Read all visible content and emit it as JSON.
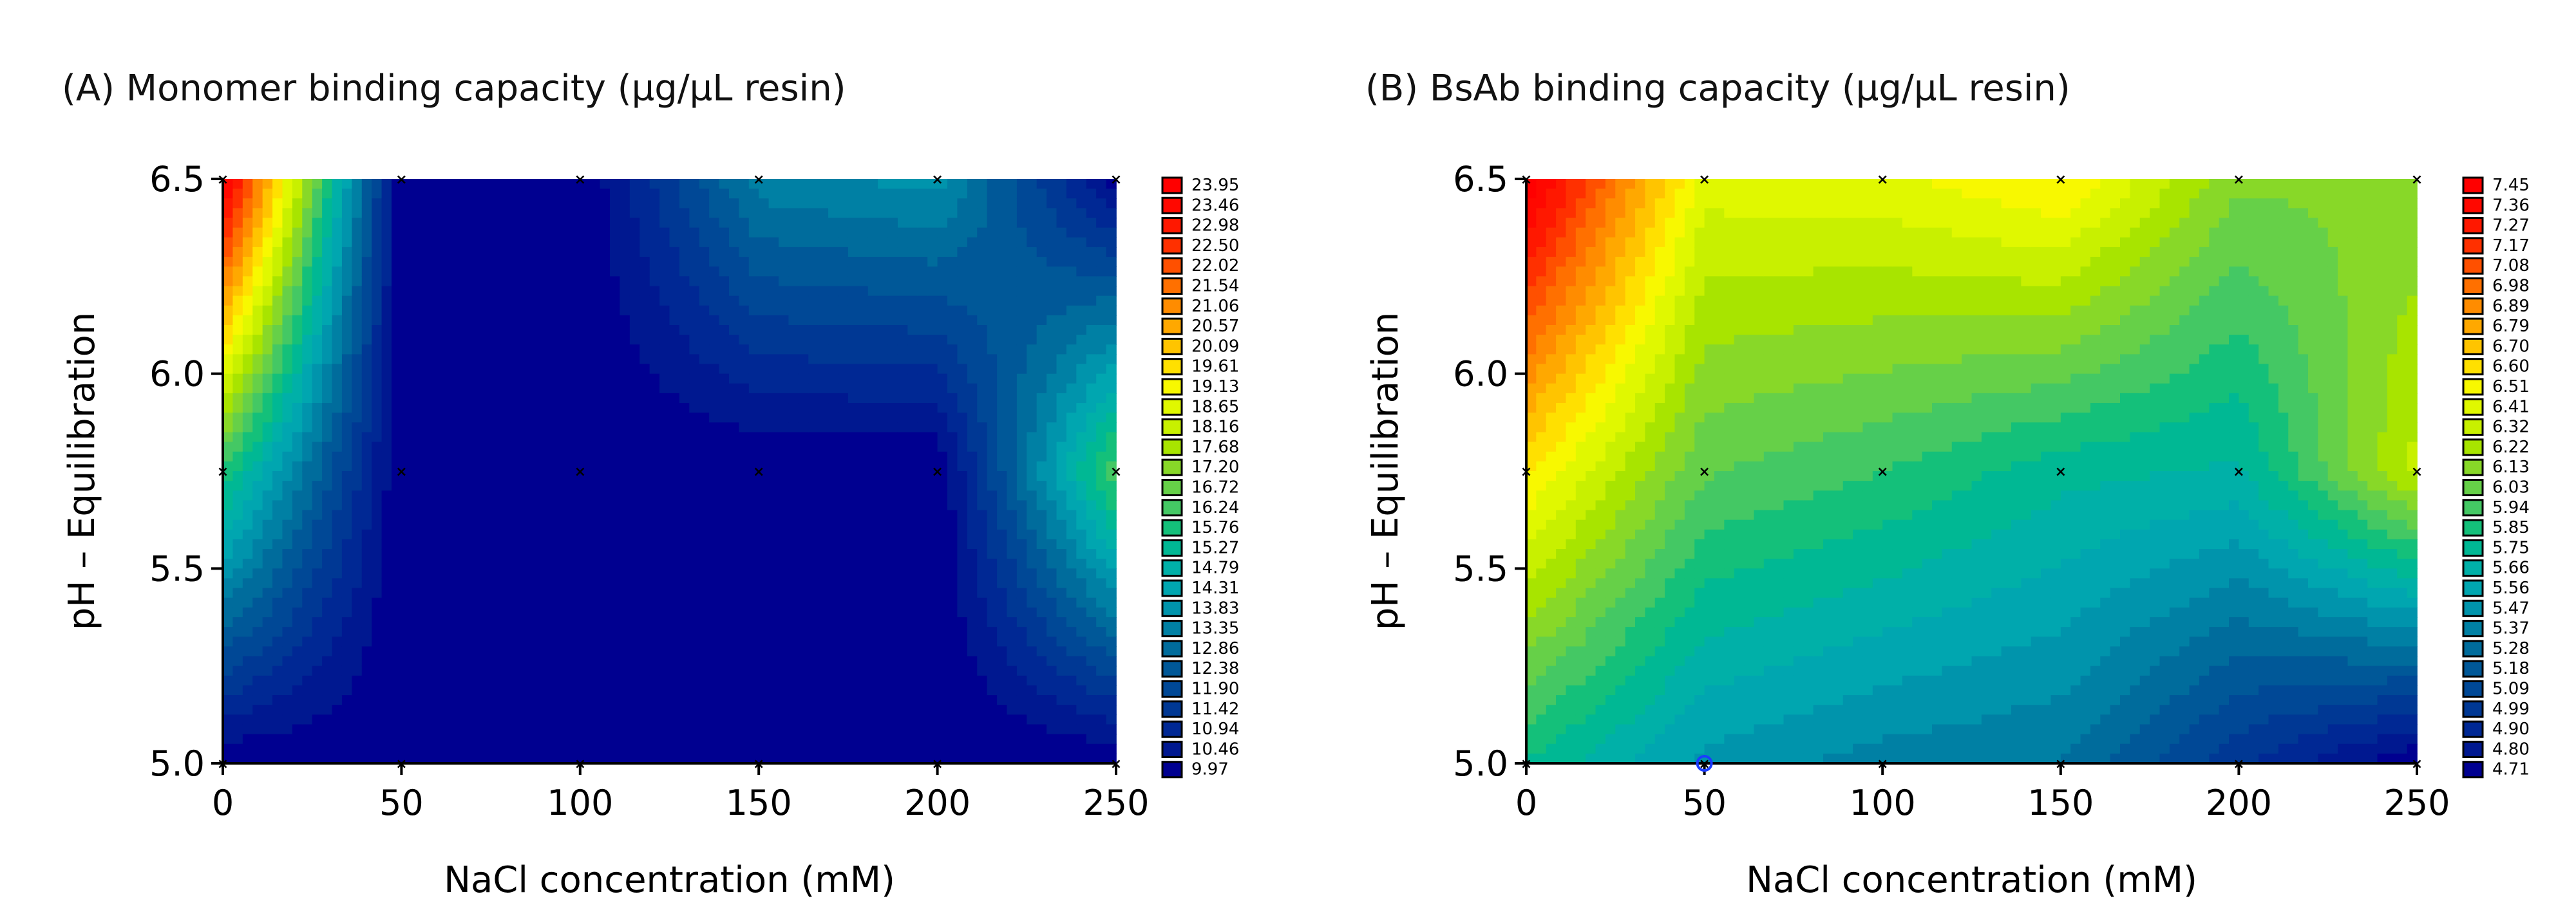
{
  "chart_data": [
    {
      "type": "heatmap",
      "subtype": "filled-contour",
      "title": "(A) Monomer binding capacity (µg/µL resin)",
      "xlabel": "NaCl concentration (mM)",
      "ylabel": "pH – Equilibration",
      "xlim": [
        0,
        250
      ],
      "ylim": [
        5.0,
        6.5
      ],
      "x_ticks": [
        "0",
        "50",
        "100",
        "150",
        "200",
        "250"
      ],
      "y_ticks": [
        "5.0",
        "5.5",
        "6.0",
        "6.5"
      ],
      "x": [
        0,
        50,
        100,
        150,
        200,
        250
      ],
      "y": [
        5.0,
        5.75,
        6.5
      ],
      "z": [
        [
          10.0,
          9.97,
          9.97,
          9.97,
          9.97,
          9.97
        ],
        [
          16.0,
          9.97,
          9.97,
          9.97,
          9.97,
          16.5
        ],
        [
          23.95,
          9.97,
          9.97,
          13.5,
          13.9,
          10.2
        ]
      ],
      "legend_position": "right",
      "legend_levels": [
        "23.95",
        "23.46",
        "22.98",
        "22.50",
        "22.02",
        "21.54",
        "21.06",
        "20.57",
        "20.09",
        "19.61",
        "19.13",
        "18.65",
        "18.16",
        "17.68",
        "17.20",
        "16.72",
        "16.24",
        "15.76",
        "15.27",
        "14.79",
        "14.31",
        "13.83",
        "13.35",
        "12.86",
        "12.38",
        "11.90",
        "11.42",
        "10.94",
        "10.46",
        "9.97"
      ],
      "design_points_marker": "x"
    },
    {
      "type": "heatmap",
      "subtype": "filled-contour",
      "title": "(B) BsAb binding capacity (µg/µL resin)",
      "xlabel": "NaCl concentration (mM)",
      "ylabel": "pH – Equilibration",
      "xlim": [
        0,
        250
      ],
      "ylim": [
        5.0,
        6.5
      ],
      "x_ticks": [
        "0",
        "50",
        "100",
        "150",
        "200",
        "250"
      ],
      "y_ticks": [
        "5.0",
        "5.5",
        "6.0",
        "6.5"
      ],
      "x": [
        0,
        50,
        100,
        150,
        200,
        250
      ],
      "y": [
        5.0,
        5.75,
        6.5
      ],
      "z": [
        [
          5.8,
          5.5,
          5.4,
          5.35,
          5.0,
          4.71
        ],
        [
          6.55,
          6.0,
          5.9,
          5.75,
          5.7,
          6.3
        ],
        [
          7.45,
          6.4,
          6.42,
          6.55,
          6.1,
          6.1
        ]
      ],
      "legend_position": "right",
      "legend_levels": [
        "7.45",
        "7.36",
        "7.27",
        "7.17",
        "7.08",
        "6.98",
        "6.89",
        "6.79",
        "6.70",
        "6.60",
        "6.51",
        "6.41",
        "6.32",
        "6.22",
        "6.13",
        "6.03",
        "5.94",
        "5.85",
        "5.75",
        "5.66",
        "5.56",
        "5.47",
        "5.37",
        "5.28",
        "5.18",
        "5.09",
        "4.99",
        "4.90",
        "4.80",
        "4.71"
      ],
      "design_points_marker": "x",
      "highlight_point": {
        "x": 50,
        "y": 5.0,
        "color": "#1a3cff"
      }
    }
  ],
  "colors": [
    "#ff0000",
    "#ff0800",
    "#ff1800",
    "#ff3000",
    "#ff5000",
    "#ff7000",
    "#ff8c00",
    "#ffa800",
    "#ffc400",
    "#ffe000",
    "#f8f800",
    "#e0f800",
    "#c8f000",
    "#a8e400",
    "#88d828",
    "#66d048",
    "#44c864",
    "#14c07a",
    "#00b894",
    "#00b0a8",
    "#00a6b0",
    "#0094ac",
    "#0080a4",
    "#006c9c",
    "#005898",
    "#004896",
    "#003894",
    "#002894",
    "#001890",
    "#000090"
  ]
}
